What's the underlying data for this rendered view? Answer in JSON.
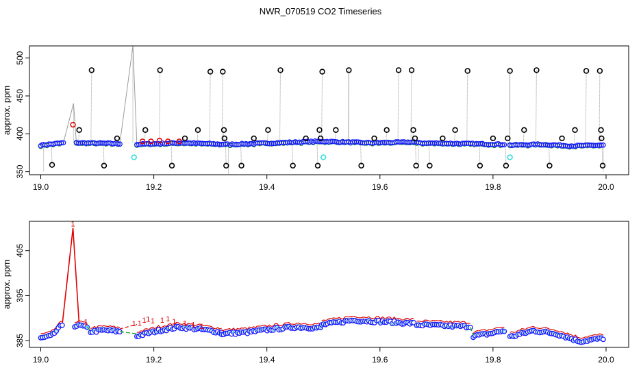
{
  "title": "NWR_070519  CO2 Timeseries",
  "chart_data": [
    {
      "id": "top",
      "type": "scatter",
      "ylabel": "approx. ppm",
      "xlim": [
        18.98,
        20.04
      ],
      "ylim": [
        346,
        516
      ],
      "xticks": [
        19.0,
        19.2,
        19.4,
        19.6,
        19.8,
        20.0
      ],
      "xtick_labels": [
        "19.0",
        "19.2",
        "19.4",
        "19.6",
        "19.8",
        "20.0"
      ],
      "yticks": [
        350,
        400,
        450,
        500
      ],
      "ytick_labels": [
        "350",
        "400",
        "450",
        "500"
      ],
      "grid": false,
      "segments": [
        {
          "x0": 19.0,
          "x1": 19.04,
          "base": [
            385,
            388
          ]
        },
        {
          "x0": 19.063,
          "x1": 19.14,
          "base": [
            388,
            387
          ]
        },
        {
          "x0": 19.17,
          "x1": 19.33,
          "base": [
            386,
            388,
            386
          ]
        },
        {
          "x0": 19.335,
          "x1": 19.66,
          "base": [
            386,
            388,
            390,
            388,
            389
          ]
        },
        {
          "x0": 19.665,
          "x1": 19.82,
          "base": [
            388,
            387,
            386
          ]
        },
        {
          "x0": 19.83,
          "x1": 19.995,
          "base": [
            385,
            386,
            384,
            385
          ]
        }
      ],
      "black_outliers": [
        [
          19.02,
          359
        ],
        [
          19.068,
          405
        ],
        [
          19.09,
          484
        ],
        [
          19.112,
          358
        ],
        [
          19.135,
          394
        ],
        [
          19.185,
          405
        ],
        [
          19.211,
          484
        ],
        [
          19.232,
          358
        ],
        [
          19.255,
          394
        ],
        [
          19.278,
          405
        ],
        [
          19.3,
          482
        ],
        [
          19.322,
          482
        ],
        [
          19.324,
          405
        ],
        [
          19.325,
          394
        ],
        [
          19.328,
          358
        ],
        [
          19.355,
          358
        ],
        [
          19.377,
          394
        ],
        [
          19.402,
          405
        ],
        [
          19.424,
          484
        ],
        [
          19.446,
          358
        ],
        [
          19.469,
          394
        ],
        [
          19.49,
          358
        ],
        [
          19.493,
          405
        ],
        [
          19.495,
          394
        ],
        [
          19.498,
          482
        ],
        [
          19.522,
          405
        ],
        [
          19.545,
          484
        ],
        [
          19.567,
          358
        ],
        [
          19.59,
          394
        ],
        [
          19.612,
          405
        ],
        [
          19.633,
          484
        ],
        [
          19.656,
          484
        ],
        [
          19.659,
          405
        ],
        [
          19.662,
          394
        ],
        [
          19.664,
          358
        ],
        [
          19.688,
          358
        ],
        [
          19.711,
          394
        ],
        [
          19.733,
          405
        ],
        [
          19.755,
          483
        ],
        [
          19.777,
          358
        ],
        [
          19.8,
          394
        ],
        [
          19.823,
          358
        ],
        [
          19.826,
          394
        ],
        [
          19.83,
          483
        ],
        [
          19.855,
          405
        ],
        [
          19.877,
          484
        ],
        [
          19.9,
          358
        ],
        [
          19.922,
          394
        ],
        [
          19.945,
          405
        ],
        [
          19.965,
          483
        ],
        [
          19.989,
          483
        ],
        [
          19.991,
          405
        ],
        [
          19.992,
          394
        ],
        [
          19.994,
          358
        ]
      ],
      "red_points": [
        [
          19.057,
          412
        ],
        [
          19.18,
          390
        ],
        [
          19.195,
          390
        ],
        [
          19.21,
          391
        ],
        [
          19.225,
          390
        ],
        [
          19.245,
          390
        ]
      ],
      "cyan_points": [
        [
          19.165,
          369
        ],
        [
          19.5,
          369
        ],
        [
          19.83,
          369
        ]
      ],
      "gray_spikes": [
        [
          19.005,
          350
        ],
        [
          19.058,
          440
        ],
        [
          19.163,
          516
        ],
        [
          19.332,
          346
        ],
        [
          19.545,
          488
        ],
        [
          19.668,
          350
        ],
        [
          19.83,
          488
        ],
        [
          19.995,
          350
        ]
      ]
    },
    {
      "id": "bottom",
      "type": "line",
      "ylabel": "approx. ppm",
      "xlim": [
        18.98,
        20.04
      ],
      "ylim": [
        383.5,
        411.5
      ],
      "xticks": [
        19.0,
        19.2,
        19.4,
        19.6,
        19.8,
        20.0
      ],
      "xtick_labels": [
        "19.0",
        "19.2",
        "19.4",
        "19.6",
        "19.8",
        "20.0"
      ],
      "yticks": [
        385,
        395,
        405
      ],
      "ytick_labels": [
        "385",
        "395",
        "405"
      ],
      "grid": false,
      "point_marker": "1",
      "segments": [
        {
          "x0": 19.0,
          "x1": 19.038,
          "base": [
            385.5,
            386,
            388.5
          ],
          "jump_to_next": 388.3
        },
        {
          "x0": 19.06,
          "x1": 19.082,
          "base": [
            388.3,
            388.3,
            387.8
          ]
        },
        {
          "x0": 19.088,
          "x1": 19.14,
          "base": [
            387,
            387.3,
            387
          ]
        },
        {
          "x0": 19.17,
          "x1": 19.32,
          "base": [
            386,
            387.2,
            388,
            387.5,
            386.8
          ]
        },
        {
          "x0": 19.32,
          "x1": 19.495,
          "base": [
            386.5,
            386.8,
            387.5,
            388,
            387.8
          ]
        },
        {
          "x0": 19.497,
          "x1": 19.66,
          "base": [
            388.5,
            389.5,
            389.2,
            388.8
          ]
        },
        {
          "x0": 19.665,
          "x1": 19.76,
          "base": [
            388.5,
            388.3,
            388.1
          ]
        },
        {
          "x0": 19.765,
          "x1": 19.82,
          "base": [
            386,
            386.5,
            387.2
          ]
        },
        {
          "x0": 19.83,
          "x1": 19.995,
          "base": [
            385.8,
            387.2,
            386.5,
            384.8,
            385.5
          ]
        }
      ],
      "red_spike": [
        [
          19.038,
          388.5
        ],
        [
          19.057,
          410
        ],
        [
          19.068,
          388.5
        ]
      ],
      "red_markers": [
        [
          19.057,
          411
        ],
        [
          19.08,
          389.2
        ],
        [
          19.165,
          388.8
        ],
        [
          19.175,
          388.9
        ],
        [
          19.183,
          389.6
        ],
        [
          19.19,
          389.8
        ],
        [
          19.198,
          389.4
        ],
        [
          19.215,
          389.6
        ],
        [
          19.225,
          389.9
        ],
        [
          19.236,
          389.3
        ],
        [
          19.255,
          388.9
        ],
        [
          19.27,
          388.6
        ],
        [
          19.285,
          388.2
        ]
      ]
    }
  ]
}
